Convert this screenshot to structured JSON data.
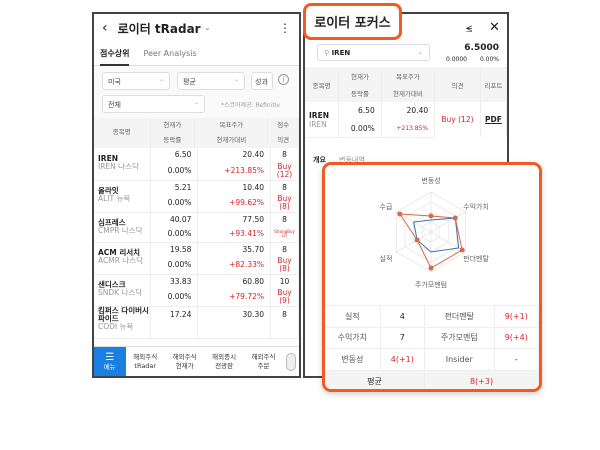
{
  "left": {
    "title": "로이터 tRadar",
    "tabs": [
      "점수상위",
      "Peer Analysis"
    ],
    "filters": {
      "market": "미국",
      "mode": "평균",
      "perf_button": "성과",
      "sector": "전체",
      "source_note": "*스코어제공: Refinitiv"
    },
    "headers": {
      "name": "종목명",
      "price": "현재가",
      "change": "등락률",
      "target": "목표주가",
      "vs_price": "현재가대비",
      "score": "점수",
      "opinion": "의견"
    },
    "rows": [
      {
        "name": "IREN",
        "sub": "IREN 나스닥",
        "price": "6.50",
        "change": "0.00%",
        "target": "20.40",
        "vs": "+213.85%",
        "score": "8",
        "opinion": "Buy (12)"
      },
      {
        "name": "올라잇",
        "sub": "ALIT 뉴욕",
        "price": "5.21",
        "change": "0.00%",
        "target": "10.40",
        "vs": "+99.62%",
        "score": "8",
        "opinion": "Buy (8)"
      },
      {
        "name": "심프레스",
        "sub": "CMPR 나스닥",
        "price": "40.07",
        "change": "0.00%",
        "target": "77.50",
        "vs": "+93.41%",
        "score": "8",
        "opinion": "StrongBuy (2)"
      },
      {
        "name": "ACM 리서치",
        "sub": "ACMR 나스닥",
        "price": "19.58",
        "change": "0.00%",
        "target": "35.70",
        "vs": "+82.33%",
        "score": "8",
        "opinion": "Buy (8)"
      },
      {
        "name": "샌디스크",
        "sub": "SNDK 나스닥",
        "price": "33.83",
        "change": "0.00%",
        "target": "60.80",
        "vs": "+79.72%",
        "score": "10",
        "opinion": "Buy (9)"
      },
      {
        "name": "킴퍼스 다이버시파이드",
        "sub": "CODI 뉴욕",
        "price": "17.24",
        "change": "",
        "target": "30.30",
        "vs": "",
        "score": "8",
        "opinion": ""
      }
    ],
    "nav": [
      {
        "label": "메뉴"
      },
      {
        "label": "해외주식\ntRadar"
      },
      {
        "label": "해외주식\n현재가"
      },
      {
        "label": "해외증시\n전광판"
      },
      {
        "label": "해외주식\n주문"
      }
    ]
  },
  "right": {
    "callout": "로이터 포커스",
    "search_value": "IREN",
    "price": "6.5000",
    "change": "0.0000",
    "change_pct": "0.00%",
    "headers": {
      "name": "종목명",
      "price": "현재가",
      "change": "등락률",
      "target": "목표주가",
      "vs_price": "현재가대비",
      "opinion": "의견",
      "report": "리포트"
    },
    "row": {
      "name": "IREN",
      "sub": "IREN",
      "price": "6.50",
      "change": "0.00%",
      "target": "20.40",
      "vs": "+213.85%",
      "opinion": "Buy (12)",
      "report": "PDF"
    },
    "tabs": [
      "개요",
      "변동내역"
    ]
  },
  "popup": {
    "radar": {
      "axes": [
        "변동성",
        "수익가치",
        "펀더멘탈",
        "주가모멘텀",
        "실적",
        "수급"
      ],
      "max": 10,
      "series": [
        {
          "color": "#d9694a",
          "values": [
            4,
            7,
            9,
            9,
            4,
            9
          ]
        },
        {
          "color": "#3d6bb3",
          "values": [
            3,
            7,
            8,
            5,
            4,
            5
          ]
        }
      ]
    },
    "scores": [
      [
        {
          "label": "실적",
          "value": "4",
          "red": false
        },
        {
          "label": "펀더멘탈",
          "value": "9(+1)",
          "red": true
        }
      ],
      [
        {
          "label": "수익가치",
          "value": "7",
          "red": false
        },
        {
          "label": "주가모멘텀",
          "value": "9(+4)",
          "red": true
        }
      ],
      [
        {
          "label": "변동성",
          "value": "4(+1)",
          "red": true
        },
        {
          "label": "Insider",
          "value": "-",
          "red": false
        }
      ]
    ],
    "average_label": "평균",
    "average_value": "8(+3)"
  },
  "colors": {
    "accent": "#f15a22",
    "red": "#d3262e",
    "nav_active": "#1a7fe0"
  }
}
